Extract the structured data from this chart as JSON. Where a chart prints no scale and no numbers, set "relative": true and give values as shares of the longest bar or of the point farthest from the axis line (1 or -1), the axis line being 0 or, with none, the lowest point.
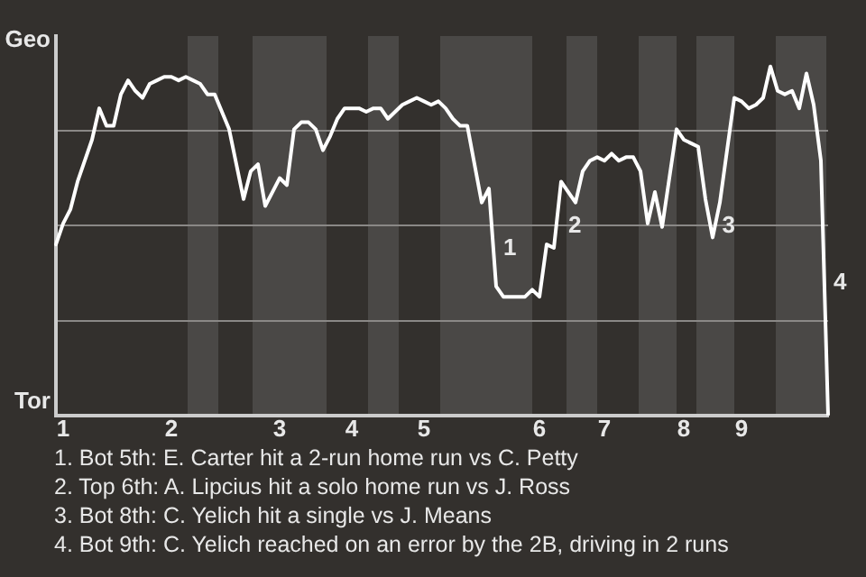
{
  "chart_data": {
    "type": "line",
    "relative": true,
    "categories": [
      null,
      "1",
      null,
      null,
      null,
      null,
      null,
      null,
      null,
      null,
      null,
      null,
      null,
      null,
      null,
      null,
      "2",
      null,
      null,
      null,
      null,
      null,
      null,
      null,
      null,
      null,
      null,
      null,
      null,
      null,
      null,
      "3",
      null,
      null,
      null,
      null,
      null,
      null,
      null,
      null,
      null,
      "4",
      null,
      null,
      null,
      null,
      null,
      null,
      null,
      null,
      null,
      "5",
      null,
      null,
      null,
      null,
      null,
      null,
      null,
      null,
      null,
      null,
      null,
      null,
      null,
      null,
      null,
      "6",
      null,
      null,
      null,
      null,
      null,
      null,
      null,
      null,
      "7",
      null,
      null,
      null,
      null,
      null,
      null,
      null,
      null,
      null,
      null,
      "8",
      null,
      null,
      null,
      null,
      null,
      null,
      null,
      "9",
      null,
      null,
      null,
      null,
      null,
      null,
      null,
      null,
      null,
      null,
      null,
      null
    ],
    "series": [
      {
        "color": "#ffffff",
        "values": [
          0.49,
          0.55,
          0.59,
          0.67,
          0.73,
          0.79,
          0.88,
          0.83,
          0.83,
          0.92,
          0.96,
          0.93,
          0.91,
          0.95,
          0.96,
          0.97,
          0.97,
          0.96,
          0.97,
          0.96,
          0.95,
          0.92,
          0.92,
          0.87,
          0.82,
          0.72,
          0.62,
          0.7,
          0.72,
          0.6,
          0.64,
          0.68,
          0.66,
          0.82,
          0.84,
          0.84,
          0.82,
          0.76,
          0.8,
          0.85,
          0.88,
          0.88,
          0.88,
          0.87,
          0.88,
          0.88,
          0.85,
          0.87,
          0.89,
          0.9,
          0.91,
          0.9,
          0.89,
          0.9,
          0.88,
          0.85,
          0.83,
          0.83,
          0.72,
          0.61,
          0.65,
          0.37,
          0.34,
          0.34,
          0.34,
          0.34,
          0.36,
          0.34,
          0.49,
          0.48,
          0.67,
          0.64,
          0.61,
          0.7,
          0.73,
          0.74,
          0.73,
          0.75,
          0.73,
          0.74,
          0.74,
          0.7,
          0.55,
          0.64,
          0.54,
          0.68,
          0.82,
          0.79,
          0.78,
          0.77,
          0.62,
          0.51,
          0.61,
          0.76,
          0.91,
          0.9,
          0.88,
          0.89,
          0.91,
          1.0,
          0.93,
          0.92,
          0.93,
          0.88,
          0.98,
          0.89,
          0.73,
          0
        ],
        "line_style": "solid"
      }
    ],
    "grid": "y",
    "marker": "none",
    "legend": false,
    "annotations": [
      "Geo",
      "Tor",
      "1",
      "2",
      "3",
      "4",
      "1. Bot 5th: E. Carter hit a 2-run home run vs C. Petty",
      "2. Top 6th: A. Lipcius hit a solo home run vs J. Ross",
      "3. Bot 8th: C. Yelich hit a single vs J. Means",
      "4. Bot 9th: C. Yelich reached on an error by the 2B, driving in 2 runs"
    ]
  }
}
